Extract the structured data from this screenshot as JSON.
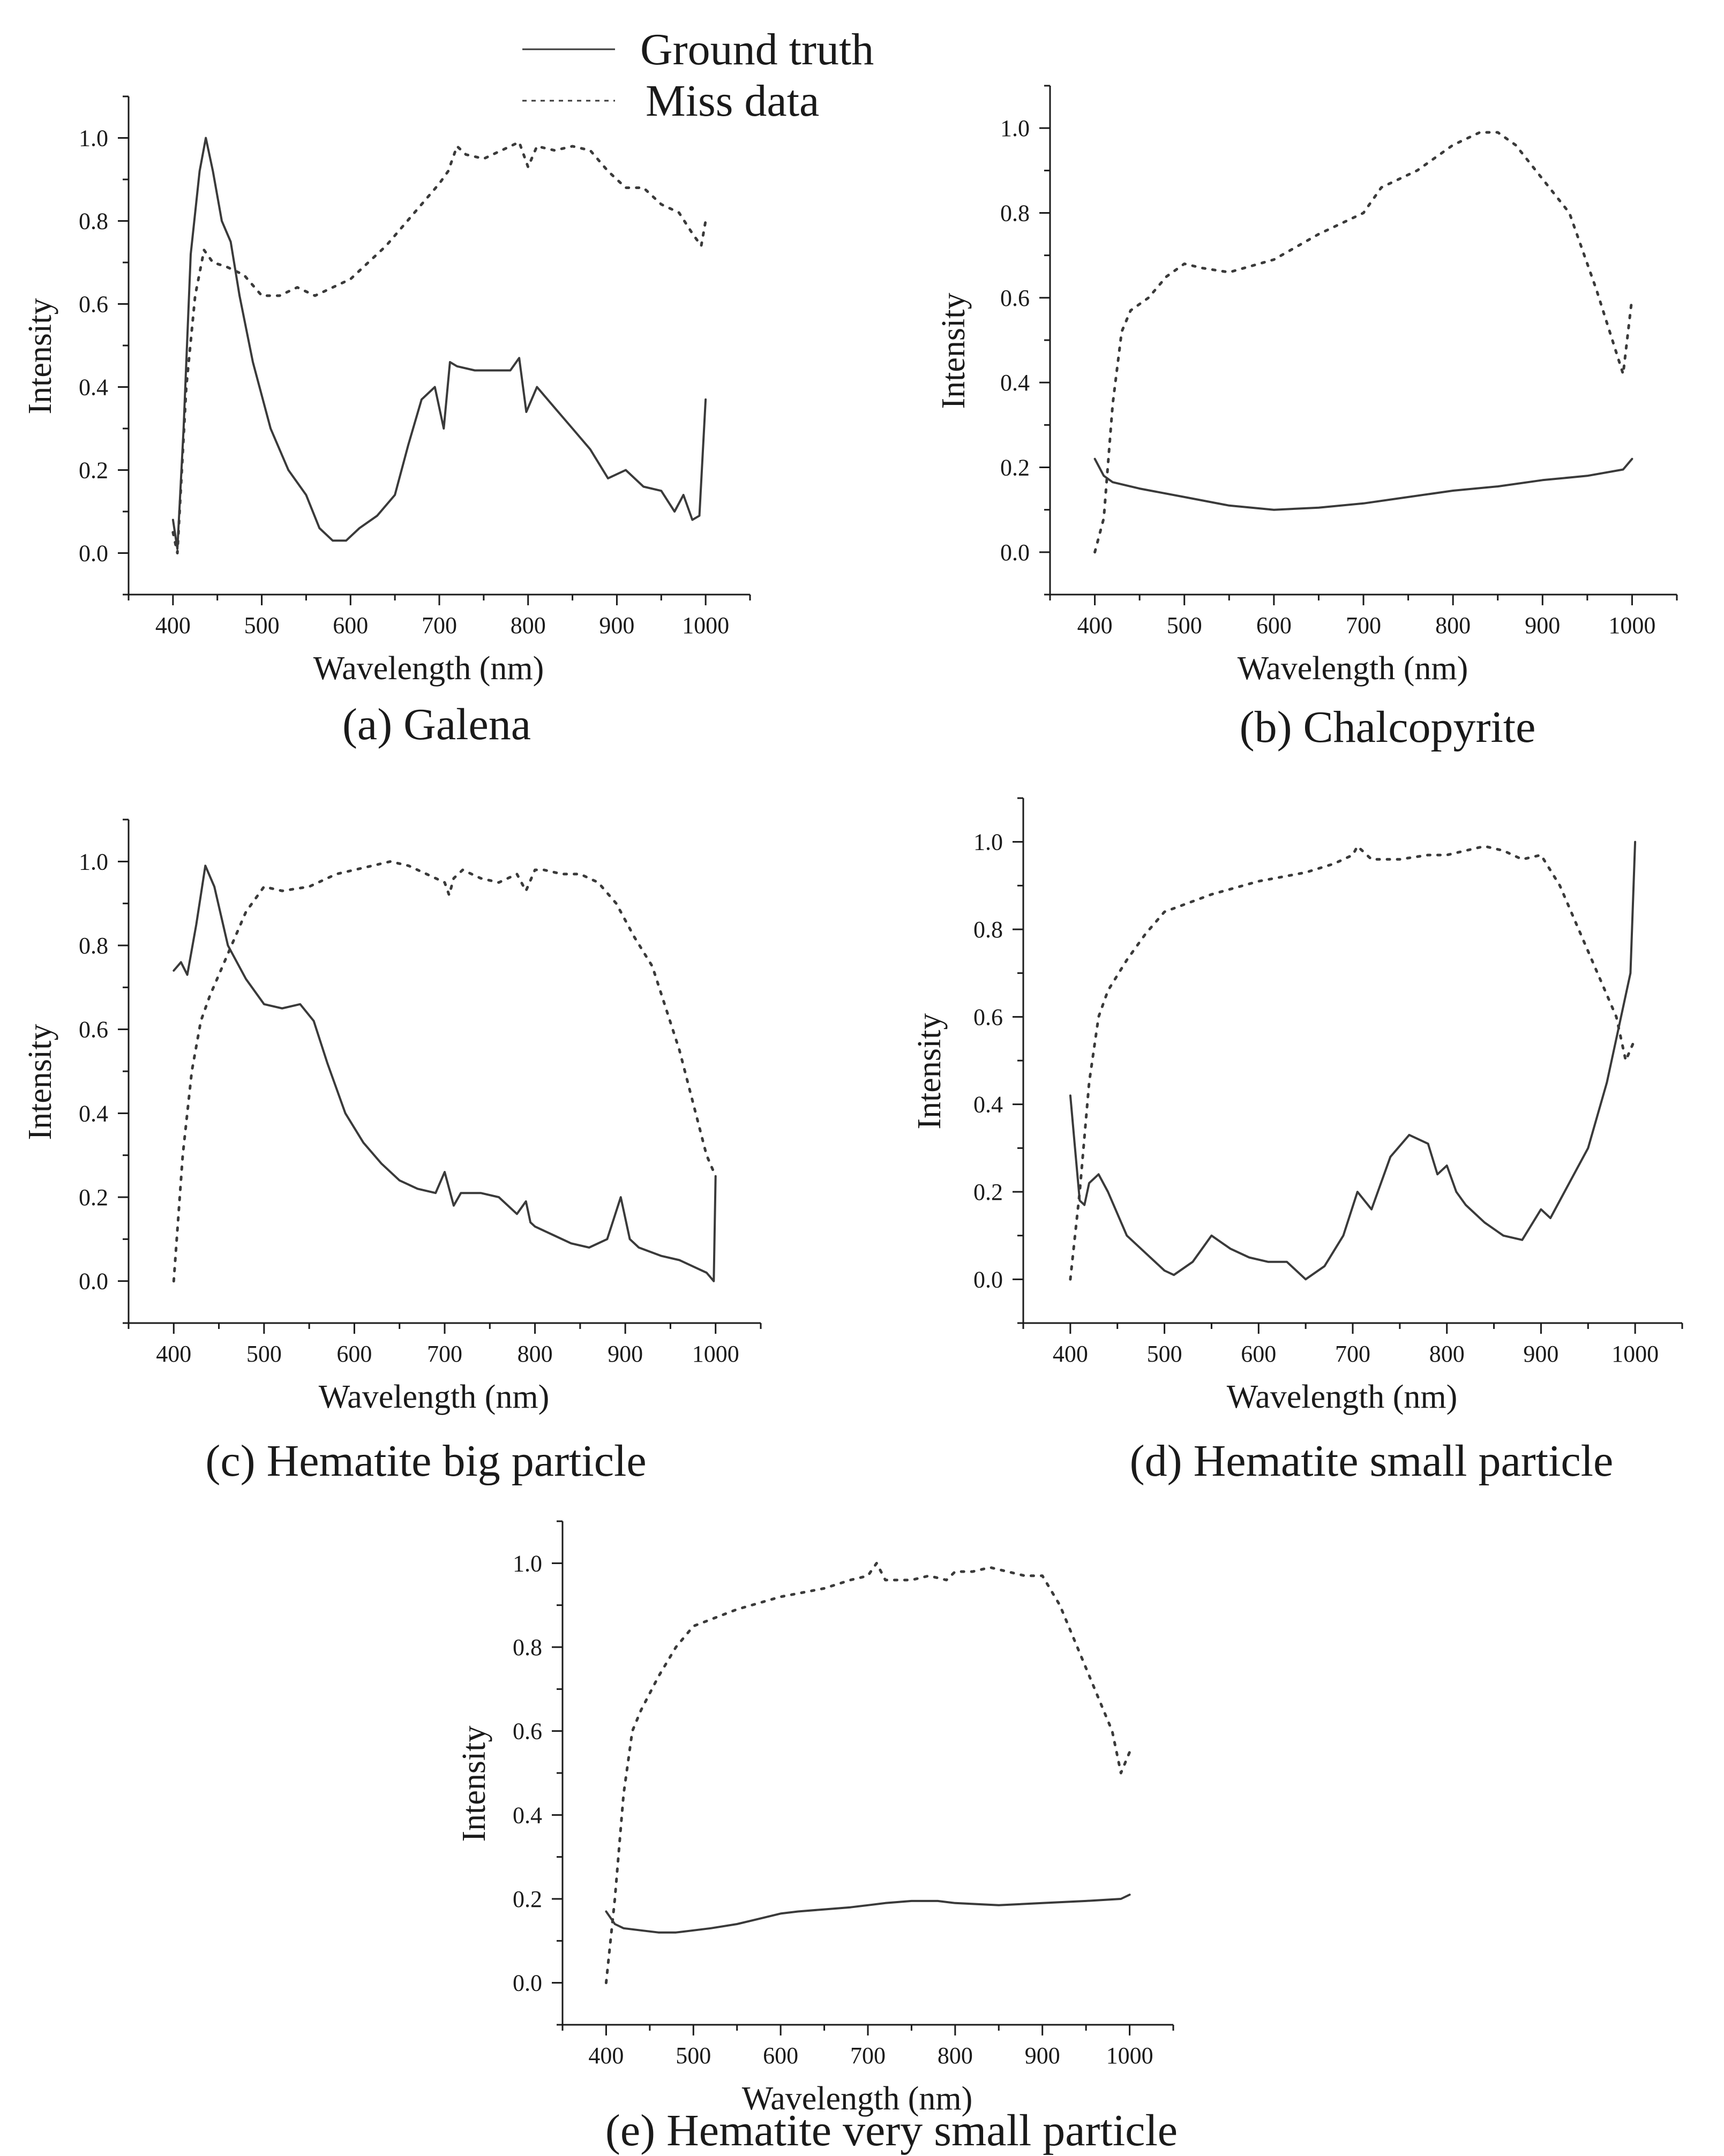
{
  "legend": {
    "entries": [
      {
        "label": "Ground truth",
        "style": "solid"
      },
      {
        "label": "Miss data",
        "style": "dotted"
      }
    ]
  },
  "colors": {
    "line": "#3a3a3a",
    "axis": "#1a1a1a",
    "background": "#ffffff"
  },
  "chart_data": [
    {
      "id": "a",
      "type": "line",
      "caption": "(a) Galena",
      "xlabel": "Wavelength (nm)",
      "ylabel": "Intensity",
      "xlim": [
        350,
        1050
      ],
      "ylim": [
        -0.1,
        1.1
      ],
      "xticks": [
        400,
        500,
        600,
        700,
        800,
        900,
        1000
      ],
      "yticks": [
        0.0,
        0.2,
        0.4,
        0.6,
        0.8,
        1.0
      ],
      "x_tick_labels": [
        "400",
        "500",
        "600",
        "700",
        "800",
        "900",
        "1000"
      ],
      "y_tick_labels": [
        "0.0",
        "0.2",
        "0.4",
        "0.6",
        "0.8",
        "1.0"
      ],
      "series": [
        {
          "name": "Ground truth",
          "style": "solid",
          "x": [
            400,
            405,
            412,
            420,
            430,
            437,
            445,
            455,
            465,
            475,
            490,
            510,
            530,
            550,
            565,
            580,
            595,
            610,
            630,
            650,
            665,
            680,
            695,
            705,
            712,
            720,
            740,
            760,
            780,
            790,
            798,
            810,
            830,
            850,
            870,
            890,
            910,
            930,
            950,
            965,
            975,
            985,
            993,
            1000
          ],
          "values": [
            0.08,
            0.01,
            0.3,
            0.72,
            0.92,
            1.0,
            0.92,
            0.8,
            0.75,
            0.62,
            0.46,
            0.3,
            0.2,
            0.14,
            0.06,
            0.03,
            0.03,
            0.06,
            0.09,
            0.14,
            0.26,
            0.37,
            0.4,
            0.3,
            0.46,
            0.45,
            0.44,
            0.44,
            0.44,
            0.47,
            0.34,
            0.4,
            0.35,
            0.3,
            0.25,
            0.18,
            0.2,
            0.16,
            0.15,
            0.1,
            0.14,
            0.08,
            0.09,
            0.37
          ]
        },
        {
          "name": "Miss data",
          "style": "dotted",
          "x": [
            400,
            405,
            415,
            425,
            435,
            445,
            460,
            480,
            500,
            520,
            540,
            560,
            580,
            600,
            620,
            640,
            660,
            680,
            700,
            710,
            720,
            730,
            750,
            770,
            790,
            800,
            810,
            830,
            850,
            870,
            890,
            910,
            930,
            950,
            970,
            985,
            995,
            1000
          ],
          "values": [
            0.05,
            0.0,
            0.4,
            0.62,
            0.73,
            0.7,
            0.69,
            0.67,
            0.62,
            0.62,
            0.64,
            0.62,
            0.64,
            0.66,
            0.7,
            0.74,
            0.79,
            0.84,
            0.89,
            0.92,
            0.98,
            0.96,
            0.95,
            0.97,
            0.99,
            0.93,
            0.98,
            0.97,
            0.98,
            0.97,
            0.92,
            0.88,
            0.88,
            0.84,
            0.82,
            0.77,
            0.74,
            0.8
          ]
        }
      ]
    },
    {
      "id": "b",
      "type": "line",
      "caption": "(b) Chalcopyrite",
      "xlabel": "Wavelength (nm)",
      "ylabel": "Intensity",
      "xlim": [
        350,
        1050
      ],
      "ylim": [
        -0.1,
        1.1
      ],
      "xticks": [
        400,
        500,
        600,
        700,
        800,
        900,
        1000
      ],
      "yticks": [
        0.0,
        0.2,
        0.4,
        0.6,
        0.8,
        1.0
      ],
      "x_tick_labels": [
        "400",
        "500",
        "600",
        "700",
        "800",
        "900",
        "1000"
      ],
      "y_tick_labels": [
        "0.0",
        "0.2",
        "0.4",
        "0.6",
        "0.8",
        "1.0"
      ],
      "series": [
        {
          "name": "Ground truth",
          "style": "solid",
          "x": [
            400,
            410,
            420,
            450,
            500,
            550,
            600,
            650,
            700,
            750,
            800,
            850,
            900,
            950,
            990,
            1000
          ],
          "values": [
            0.22,
            0.18,
            0.165,
            0.15,
            0.13,
            0.11,
            0.1,
            0.105,
            0.115,
            0.13,
            0.145,
            0.155,
            0.17,
            0.18,
            0.195,
            0.22
          ]
        },
        {
          "name": "Miss data",
          "style": "dotted",
          "x": [
            400,
            410,
            420,
            430,
            440,
            460,
            480,
            500,
            520,
            550,
            600,
            650,
            700,
            720,
            760,
            800,
            830,
            850,
            870,
            900,
            930,
            960,
            990,
            1000
          ],
          "values": [
            0.0,
            0.08,
            0.35,
            0.52,
            0.57,
            0.6,
            0.65,
            0.68,
            0.67,
            0.66,
            0.69,
            0.75,
            0.8,
            0.86,
            0.9,
            0.96,
            0.99,
            0.99,
            0.96,
            0.88,
            0.8,
            0.62,
            0.42,
            0.6
          ]
        }
      ]
    },
    {
      "id": "c",
      "type": "line",
      "caption": "(c) Hematite big particle",
      "xlabel": "Wavelength (nm)",
      "ylabel": "Intensity",
      "xlim": [
        350,
        1050
      ],
      "ylim": [
        -0.1,
        1.1
      ],
      "xticks": [
        400,
        500,
        600,
        700,
        800,
        900,
        1000
      ],
      "yticks": [
        0.0,
        0.2,
        0.4,
        0.6,
        0.8,
        1.0
      ],
      "x_tick_labels": [
        "400",
        "500",
        "600",
        "700",
        "800",
        "900",
        "1000"
      ],
      "y_tick_labels": [
        "0.0",
        "0.2",
        "0.4",
        "0.6",
        "0.8",
        "1.0"
      ],
      "series": [
        {
          "name": "Ground truth",
          "style": "solid",
          "x": [
            400,
            408,
            415,
            425,
            435,
            445,
            460,
            480,
            500,
            520,
            540,
            555,
            570,
            590,
            610,
            630,
            650,
            670,
            690,
            700,
            710,
            718,
            740,
            760,
            780,
            790,
            795,
            800,
            820,
            840,
            860,
            880,
            895,
            905,
            915,
            940,
            960,
            980,
            990,
            998,
            1000
          ],
          "values": [
            0.74,
            0.76,
            0.73,
            0.85,
            0.99,
            0.94,
            0.8,
            0.72,
            0.66,
            0.65,
            0.66,
            0.62,
            0.52,
            0.4,
            0.33,
            0.28,
            0.24,
            0.22,
            0.21,
            0.26,
            0.18,
            0.21,
            0.21,
            0.2,
            0.16,
            0.19,
            0.14,
            0.13,
            0.11,
            0.09,
            0.08,
            0.1,
            0.2,
            0.1,
            0.08,
            0.06,
            0.05,
            0.03,
            0.02,
            0.0,
            0.25
          ]
        },
        {
          "name": "Miss data",
          "style": "dotted",
          "x": [
            400,
            410,
            420,
            430,
            440,
            460,
            480,
            500,
            520,
            550,
            580,
            600,
            620,
            640,
            660,
            680,
            700,
            705,
            710,
            720,
            740,
            760,
            780,
            790,
            800,
            810,
            830,
            850,
            870,
            890,
            910,
            930,
            960,
            990,
            1000
          ],
          "values": [
            0.0,
            0.3,
            0.5,
            0.62,
            0.68,
            0.78,
            0.88,
            0.94,
            0.93,
            0.94,
            0.97,
            0.98,
            0.99,
            1.0,
            0.99,
            0.97,
            0.95,
            0.92,
            0.96,
            0.98,
            0.96,
            0.95,
            0.97,
            0.93,
            0.98,
            0.98,
            0.97,
            0.97,
            0.95,
            0.9,
            0.82,
            0.75,
            0.55,
            0.3,
            0.25
          ]
        }
      ]
    },
    {
      "id": "d",
      "type": "line",
      "caption": "(d) Hematite small particle",
      "xlabel": "Wavelength (nm)",
      "ylabel": "Intensity",
      "xlim": [
        350,
        1050
      ],
      "ylim": [
        -0.1,
        1.1
      ],
      "xticks": [
        400,
        500,
        600,
        700,
        800,
        900,
        1000
      ],
      "yticks": [
        0.0,
        0.2,
        0.4,
        0.6,
        0.8,
        1.0
      ],
      "x_tick_labels": [
        "400",
        "500",
        "600",
        "700",
        "800",
        "900",
        "1000"
      ],
      "y_tick_labels": [
        "0.0",
        "0.2",
        "0.4",
        "0.6",
        "0.8",
        "1.0"
      ],
      "series": [
        {
          "name": "Ground truth",
          "style": "solid",
          "x": [
            400,
            405,
            410,
            415,
            420,
            430,
            440,
            460,
            480,
            500,
            510,
            530,
            550,
            570,
            590,
            610,
            630,
            650,
            670,
            690,
            705,
            720,
            740,
            760,
            780,
            790,
            800,
            810,
            820,
            840,
            860,
            880,
            900,
            910,
            930,
            950,
            970,
            985,
            995,
            1000
          ],
          "values": [
            0.42,
            0.3,
            0.18,
            0.17,
            0.22,
            0.24,
            0.2,
            0.1,
            0.06,
            0.02,
            0.01,
            0.04,
            0.1,
            0.07,
            0.05,
            0.04,
            0.04,
            0.0,
            0.03,
            0.1,
            0.2,
            0.16,
            0.28,
            0.33,
            0.31,
            0.24,
            0.26,
            0.2,
            0.17,
            0.13,
            0.1,
            0.09,
            0.16,
            0.14,
            0.22,
            0.3,
            0.45,
            0.6,
            0.7,
            1.0
          ]
        },
        {
          "name": "Miss data",
          "style": "dotted",
          "x": [
            400,
            410,
            420,
            430,
            440,
            460,
            480,
            500,
            550,
            600,
            650,
            680,
            700,
            705,
            710,
            720,
            750,
            780,
            800,
            820,
            840,
            860,
            880,
            900,
            920,
            940,
            960,
            980,
            990,
            1000
          ],
          "values": [
            0.0,
            0.2,
            0.45,
            0.6,
            0.66,
            0.73,
            0.79,
            0.84,
            0.88,
            0.91,
            0.93,
            0.95,
            0.97,
            0.99,
            0.98,
            0.96,
            0.96,
            0.97,
            0.97,
            0.98,
            0.99,
            0.98,
            0.96,
            0.97,
            0.9,
            0.8,
            0.7,
            0.6,
            0.5,
            0.55
          ]
        }
      ]
    },
    {
      "id": "e",
      "type": "line",
      "caption": "(e) Hematite very small particle",
      "xlabel": "Wavelength (nm)",
      "ylabel": "Intensity",
      "xlim": [
        350,
        1050
      ],
      "ylim": [
        -0.1,
        1.1
      ],
      "xticks": [
        400,
        500,
        600,
        700,
        800,
        900,
        1000
      ],
      "yticks": [
        0.0,
        0.2,
        0.4,
        0.6,
        0.8,
        1.0
      ],
      "x_tick_labels": [
        "400",
        "500",
        "600",
        "700",
        "800",
        "900",
        "1000"
      ],
      "y_tick_labels": [
        "0.0",
        "0.2",
        "0.4",
        "0.6",
        "0.8",
        "1.0"
      ],
      "series": [
        {
          "name": "Ground truth",
          "style": "solid",
          "x": [
            400,
            410,
            420,
            440,
            460,
            480,
            500,
            520,
            550,
            580,
            600,
            620,
            650,
            680,
            700,
            720,
            750,
            780,
            800,
            850,
            900,
            950,
            990,
            1000
          ],
          "values": [
            0.17,
            0.14,
            0.13,
            0.125,
            0.12,
            0.12,
            0.125,
            0.13,
            0.14,
            0.155,
            0.165,
            0.17,
            0.175,
            0.18,
            0.185,
            0.19,
            0.195,
            0.195,
            0.19,
            0.185,
            0.19,
            0.195,
            0.2,
            0.21
          ]
        },
        {
          "name": "Miss data",
          "style": "dotted",
          "x": [
            400,
            410,
            420,
            430,
            440,
            460,
            480,
            500,
            550,
            600,
            650,
            680,
            700,
            710,
            720,
            750,
            770,
            790,
            800,
            820,
            840,
            860,
            880,
            900,
            920,
            940,
            960,
            980,
            990,
            1000
          ],
          "values": [
            0.0,
            0.2,
            0.45,
            0.6,
            0.65,
            0.73,
            0.8,
            0.85,
            0.89,
            0.92,
            0.94,
            0.96,
            0.97,
            1.0,
            0.96,
            0.96,
            0.97,
            0.96,
            0.98,
            0.98,
            0.99,
            0.98,
            0.97,
            0.97,
            0.9,
            0.8,
            0.7,
            0.6,
            0.5,
            0.55
          ]
        }
      ]
    }
  ]
}
